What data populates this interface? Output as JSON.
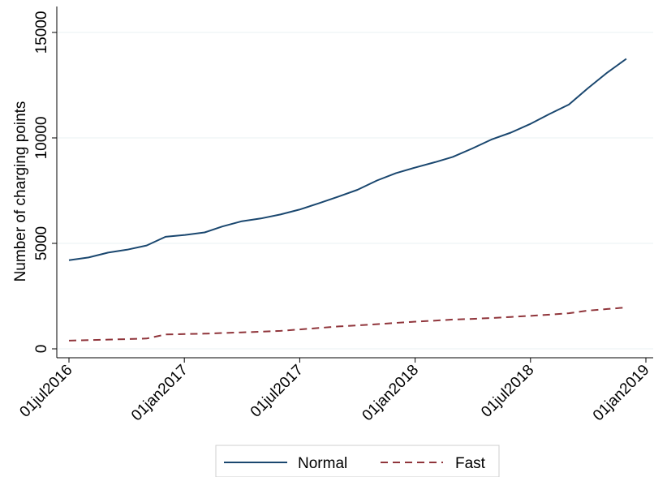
{
  "chart_data": {
    "type": "line",
    "title": "",
    "xlabel": "",
    "ylabel": "Number of charging points",
    "x_ticks": [
      "01jul2016",
      "01jan2017",
      "01jul2017",
      "01jan2018",
      "01jul2018",
      "01jan2019"
    ],
    "x_range": [
      "2016-07-01",
      "2019-01-01"
    ],
    "y_ticks": [
      0,
      5000,
      10000,
      15000
    ],
    "ylim": [
      0,
      15000
    ],
    "grid": "horizontal",
    "legend": {
      "position": "bottom",
      "entries": [
        "Normal",
        "Fast"
      ]
    },
    "series": [
      {
        "name": "Normal",
        "color": "#1a476f",
        "style": "solid",
        "points": [
          [
            "2016-07-01",
            4200
          ],
          [
            "2016-08-01",
            4330
          ],
          [
            "2016-09-01",
            4560
          ],
          [
            "2016-10-01",
            4700
          ],
          [
            "2016-11-01",
            4900
          ],
          [
            "2016-12-01",
            5310
          ],
          [
            "2017-01-01",
            5400
          ],
          [
            "2017-02-01",
            5520
          ],
          [
            "2017-03-01",
            5800
          ],
          [
            "2017-04-01",
            6050
          ],
          [
            "2017-05-01",
            6180
          ],
          [
            "2017-06-01",
            6370
          ],
          [
            "2017-07-01",
            6600
          ],
          [
            "2017-08-01",
            6900
          ],
          [
            "2017-09-01",
            7220
          ],
          [
            "2017-10-01",
            7540
          ],
          [
            "2017-11-01",
            7980
          ],
          [
            "2017-12-01",
            8330
          ],
          [
            "2018-01-01",
            8600
          ],
          [
            "2018-02-01",
            8850
          ],
          [
            "2018-03-01",
            9100
          ],
          [
            "2018-04-01",
            9500
          ],
          [
            "2018-05-01",
            9920
          ],
          [
            "2018-06-01",
            10250
          ],
          [
            "2018-07-01",
            10650
          ],
          [
            "2018-08-01",
            11130
          ],
          [
            "2018-09-01",
            11580
          ],
          [
            "2018-10-01",
            12350
          ],
          [
            "2018-11-01",
            13100
          ],
          [
            "2018-12-01",
            13750
          ]
        ]
      },
      {
        "name": "Fast",
        "color": "#90353b",
        "style": "dashed",
        "points": [
          [
            "2016-07-01",
            390
          ],
          [
            "2016-08-01",
            410
          ],
          [
            "2016-09-01",
            440
          ],
          [
            "2016-10-01",
            460
          ],
          [
            "2016-11-01",
            490
          ],
          [
            "2016-12-01",
            680
          ],
          [
            "2017-01-01",
            700
          ],
          [
            "2017-02-01",
            720
          ],
          [
            "2017-03-01",
            750
          ],
          [
            "2017-04-01",
            780
          ],
          [
            "2017-05-01",
            810
          ],
          [
            "2017-06-01",
            850
          ],
          [
            "2017-07-01",
            920
          ],
          [
            "2017-08-01",
            990
          ],
          [
            "2017-09-01",
            1060
          ],
          [
            "2017-10-01",
            1110
          ],
          [
            "2017-11-01",
            1170
          ],
          [
            "2017-12-01",
            1230
          ],
          [
            "2018-01-01",
            1290
          ],
          [
            "2018-02-01",
            1340
          ],
          [
            "2018-03-01",
            1390
          ],
          [
            "2018-04-01",
            1420
          ],
          [
            "2018-05-01",
            1460
          ],
          [
            "2018-06-01",
            1510
          ],
          [
            "2018-07-01",
            1560
          ],
          [
            "2018-08-01",
            1620
          ],
          [
            "2018-09-01",
            1690
          ],
          [
            "2018-10-01",
            1810
          ],
          [
            "2018-11-01",
            1890
          ],
          [
            "2018-12-01",
            1960
          ]
        ]
      }
    ]
  }
}
